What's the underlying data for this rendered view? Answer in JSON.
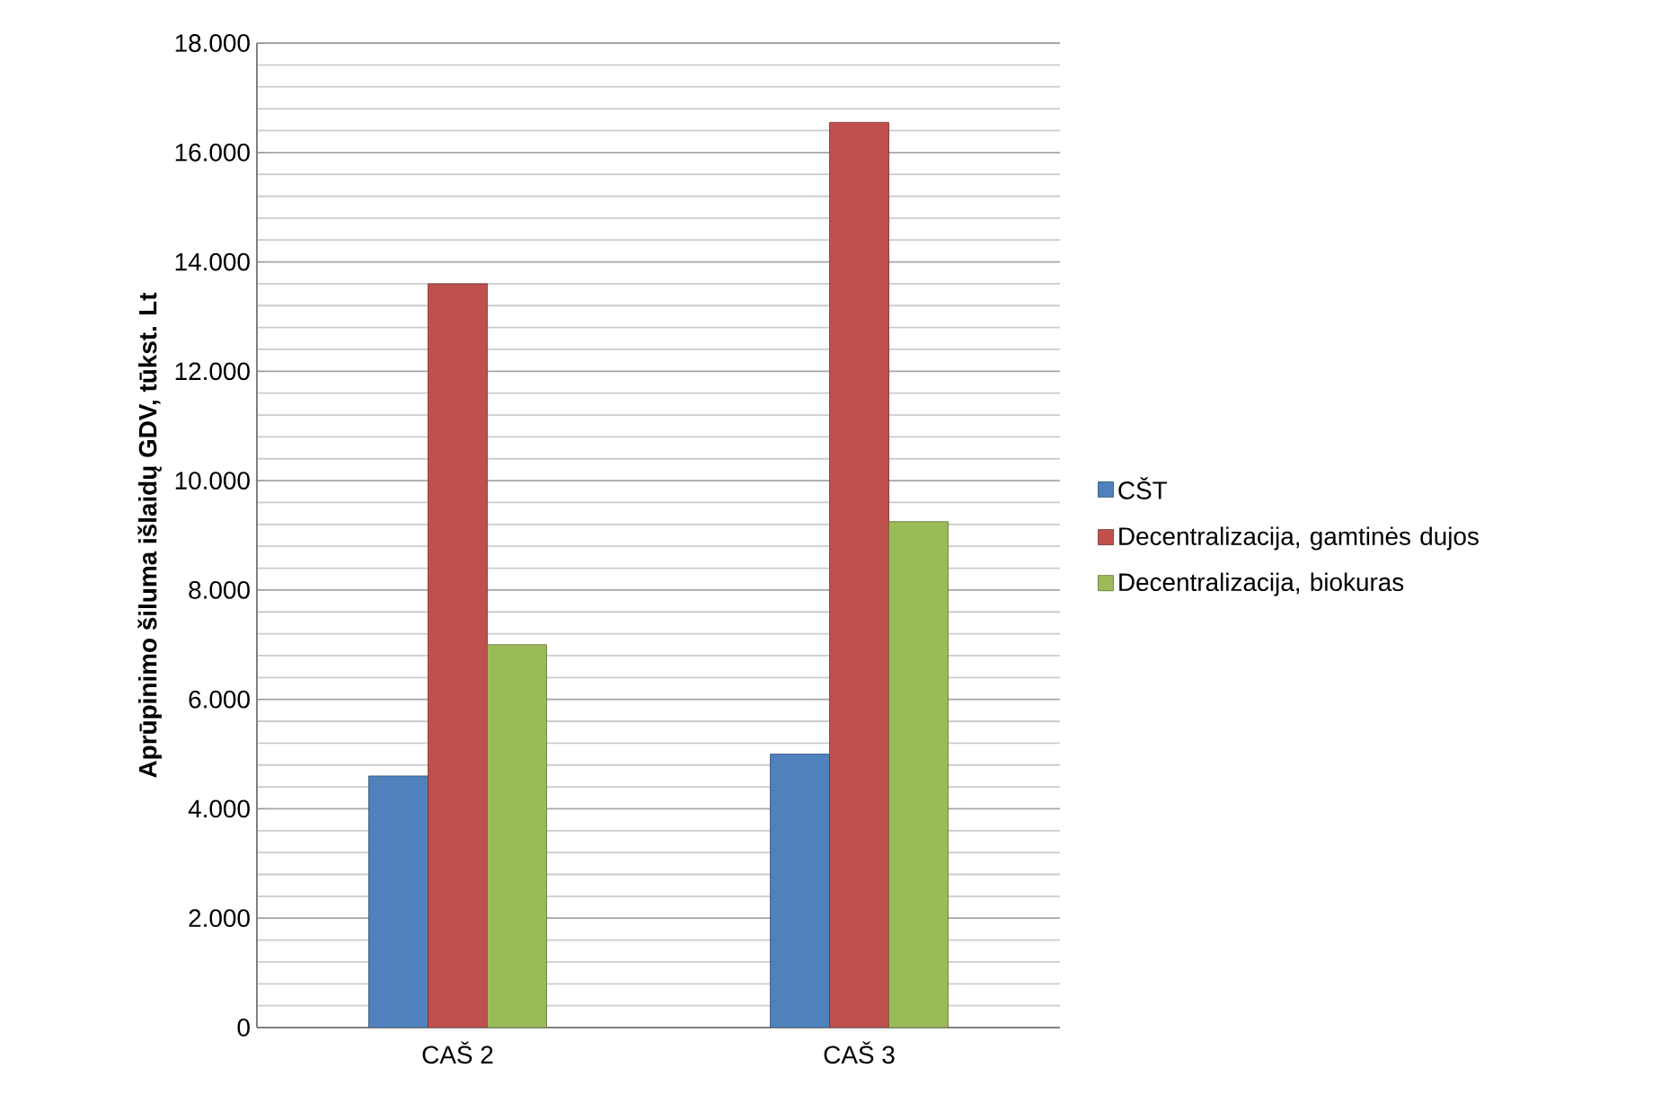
{
  "chart_data": {
    "type": "bar",
    "ylabel": "Aprūpinimo šiluma išlaidų GDV, tūkst. Lt",
    "categories": [
      "CAŠ 2",
      "CAŠ 3"
    ],
    "series": [
      {
        "name": "CŠT",
        "color": "#4f81bd",
        "values": [
          4600,
          5000
        ]
      },
      {
        "name": "Decentralizacija, gamtinės dujos",
        "color": "#c0504d",
        "values": [
          13600,
          16550
        ]
      },
      {
        "name": "Decentralizacija, biokuras",
        "color": "#9bbb59",
        "values": [
          7000,
          9250
        ]
      }
    ],
    "ylim": [
      0,
      18000
    ],
    "yticks": [
      0,
      {
        "value": 2000,
        "label": "2.000"
      },
      {
        "value": 4000,
        "label": "4.000"
      },
      {
        "value": 6000,
        "label": "6.000"
      },
      {
        "value": 8000,
        "label": "8.000"
      },
      {
        "value": 10000,
        "label": "10.000"
      },
      {
        "value": 12000,
        "label": "12.000"
      },
      {
        "value": 14000,
        "label": "14.000"
      },
      {
        "value": 16000,
        "label": "16.000"
      },
      {
        "value": 18000,
        "label": "18.000"
      }
    ],
    "grid": true,
    "legend": "right"
  }
}
